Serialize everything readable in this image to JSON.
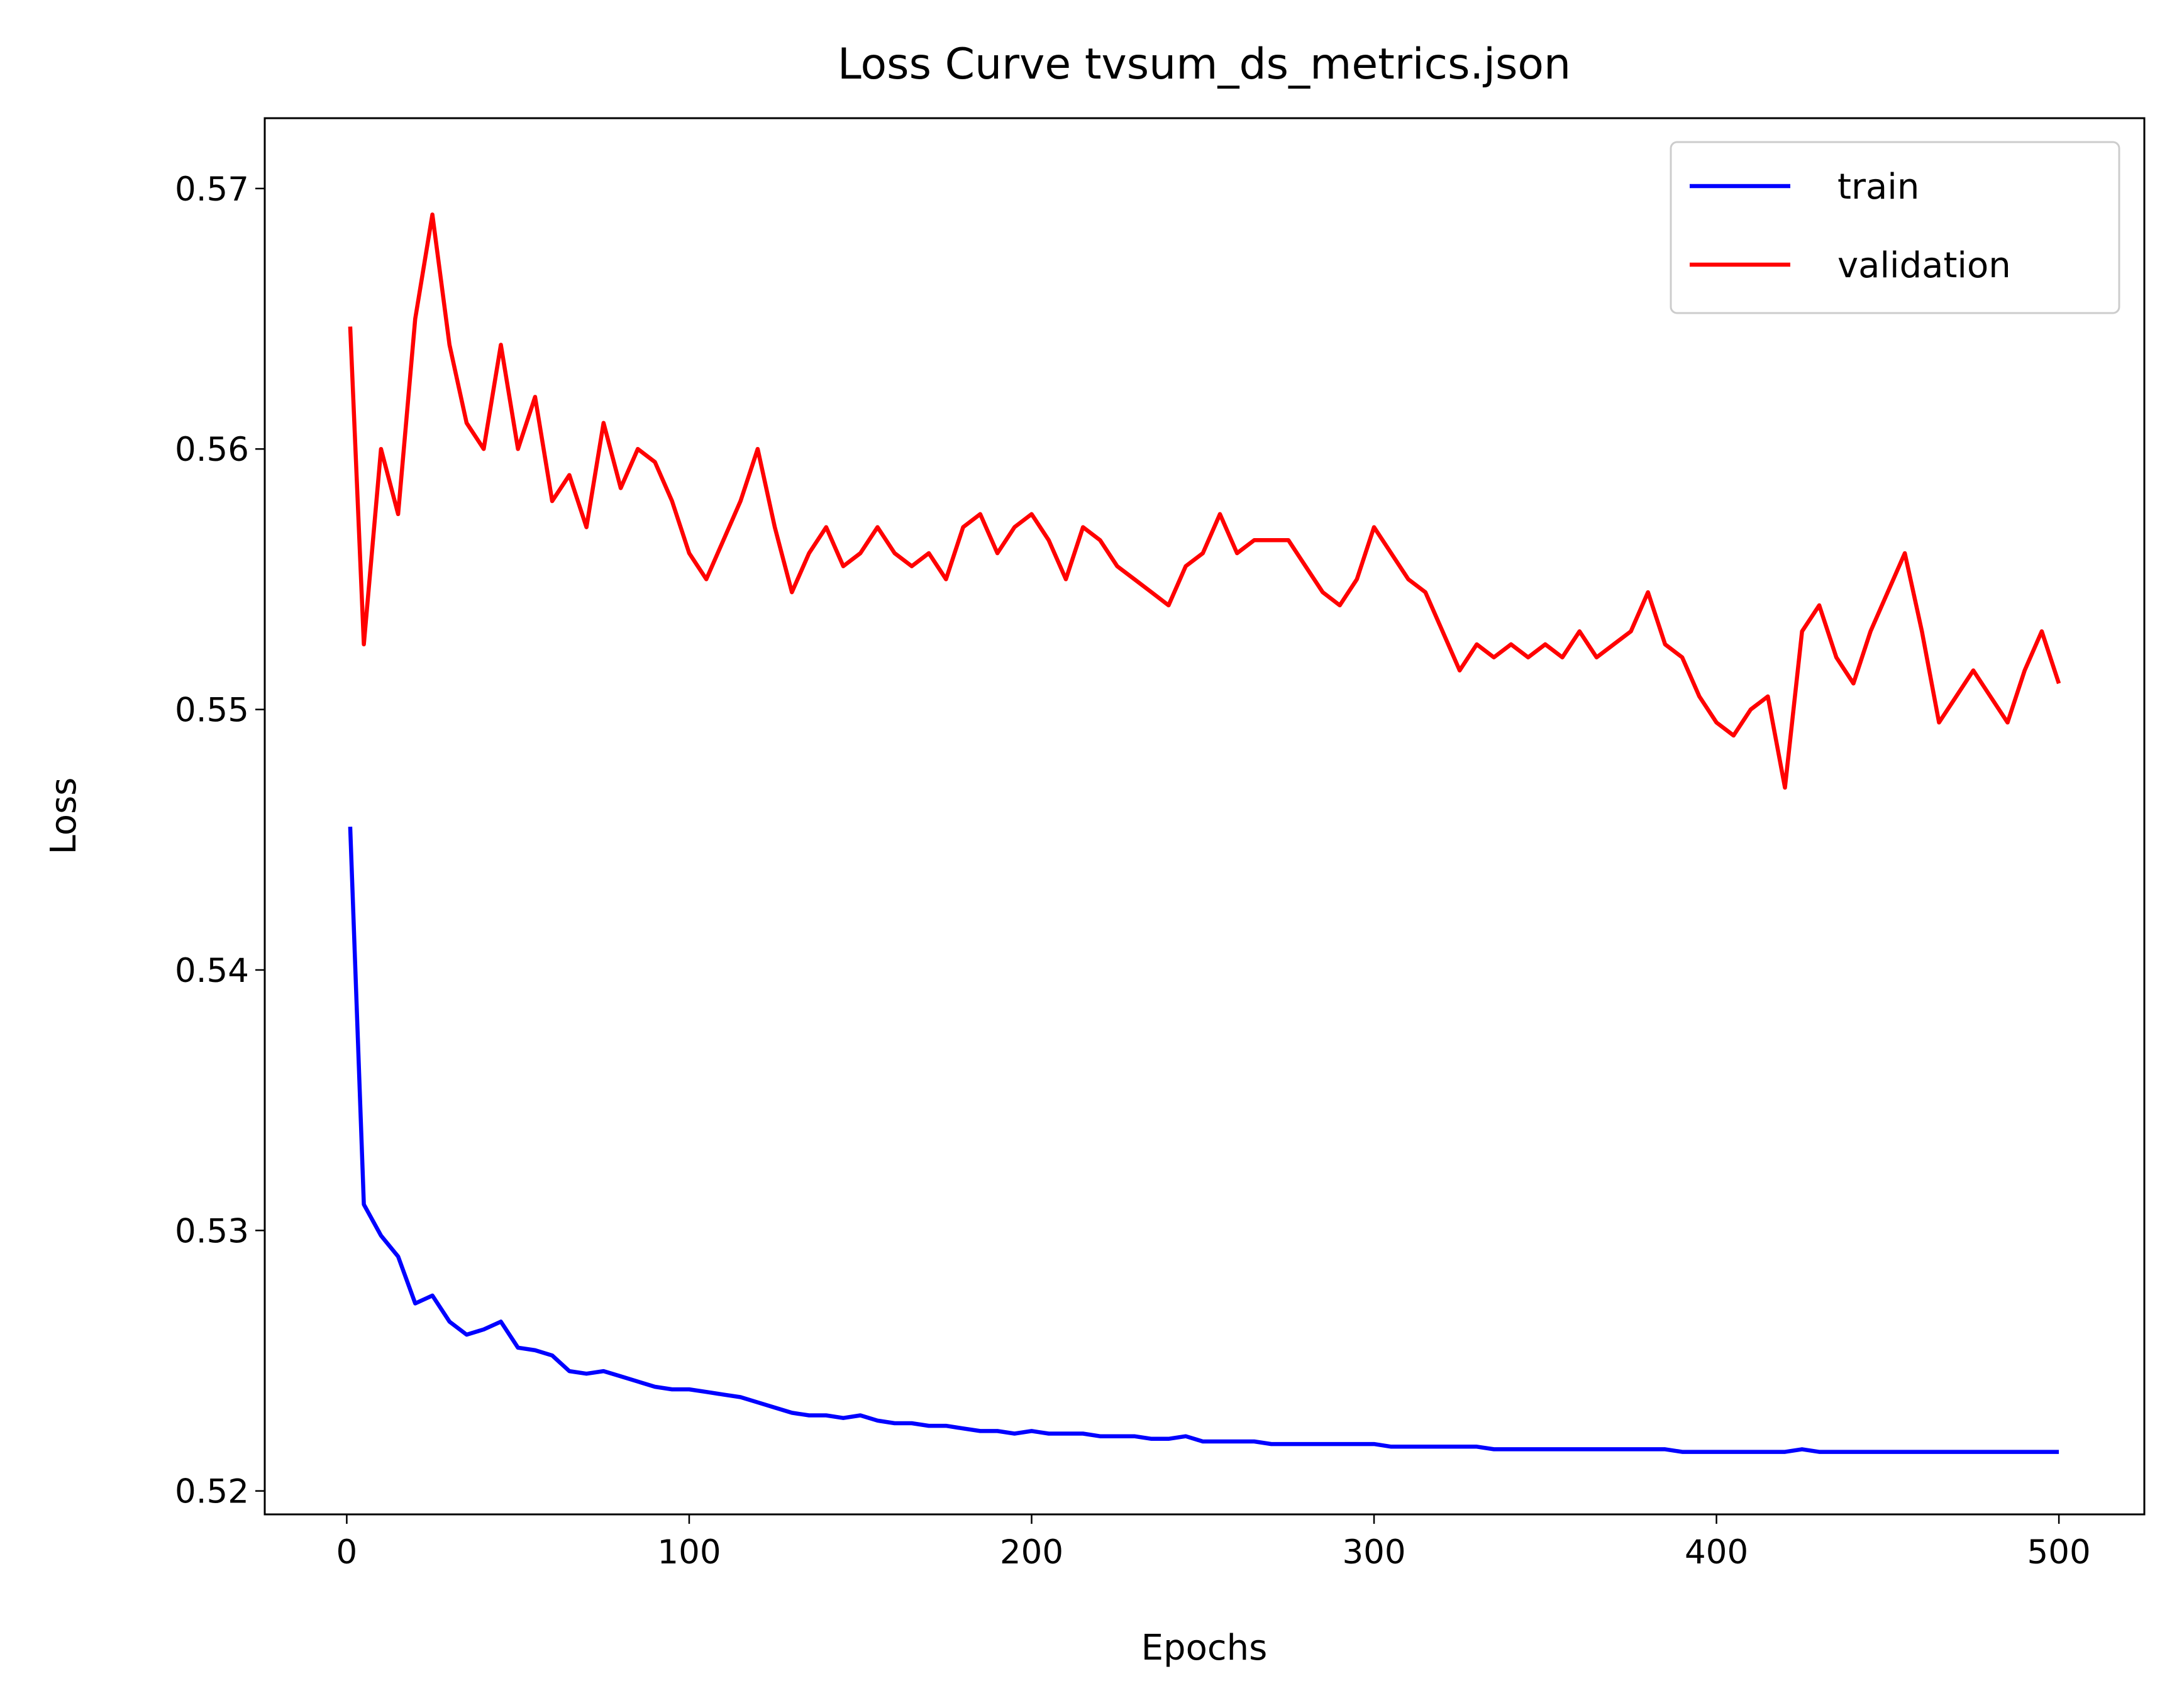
{
  "chart_data": {
    "type": "line",
    "title": "Loss Curve tvsum_ds_metrics.json",
    "x_label": "Epochs",
    "y_label": "Loss",
    "x": [
      1,
      5,
      10,
      15,
      20,
      25,
      30,
      35,
      40,
      45,
      50,
      55,
      60,
      65,
      70,
      75,
      80,
      85,
      90,
      95,
      100,
      105,
      110,
      115,
      120,
      125,
      130,
      135,
      140,
      145,
      150,
      155,
      160,
      165,
      170,
      175,
      180,
      185,
      190,
      195,
      200,
      205,
      210,
      215,
      220,
      225,
      230,
      235,
      240,
      245,
      250,
      255,
      260,
      265,
      270,
      275,
      280,
      285,
      290,
      295,
      300,
      305,
      310,
      315,
      320,
      325,
      330,
      335,
      340,
      345,
      350,
      355,
      360,
      365,
      370,
      375,
      380,
      385,
      390,
      395,
      400,
      405,
      410,
      415,
      420,
      425,
      430,
      435,
      440,
      445,
      450,
      455,
      460,
      465,
      470,
      475,
      480,
      485,
      490,
      495,
      500
    ],
    "series": [
      {
        "name": "train",
        "color": "#0000ff",
        "values": [
          0.5455,
          0.531,
          0.5298,
          0.529,
          0.5272,
          0.5275,
          0.5265,
          0.526,
          0.5262,
          0.5265,
          0.5255,
          0.5254,
          0.5252,
          0.5246,
          0.5245,
          0.5246,
          0.5244,
          0.5242,
          0.524,
          0.5239,
          0.5239,
          0.5238,
          0.5237,
          0.5236,
          0.5234,
          0.5232,
          0.523,
          0.5229,
          0.5229,
          0.5228,
          0.5229,
          0.5227,
          0.5226,
          0.5226,
          0.5225,
          0.5225,
          0.5224,
          0.5223,
          0.5223,
          0.5222,
          0.5223,
          0.5222,
          0.5222,
          0.5222,
          0.5221,
          0.5221,
          0.5221,
          0.522,
          0.522,
          0.5221,
          0.5219,
          0.5219,
          0.5219,
          0.5219,
          0.5218,
          0.5218,
          0.5218,
          0.5218,
          0.5218,
          0.5218,
          0.5218,
          0.5217,
          0.5217,
          0.5217,
          0.5217,
          0.5217,
          0.5217,
          0.5216,
          0.5216,
          0.5216,
          0.5216,
          0.5216,
          0.5216,
          0.5216,
          0.5216,
          0.5216,
          0.5216,
          0.5216,
          0.5215,
          0.5215,
          0.5215,
          0.5215,
          0.5215,
          0.5215,
          0.5215,
          0.5216,
          0.5215,
          0.5215,
          0.5215,
          0.5215,
          0.5215,
          0.5215,
          0.5215,
          0.5215,
          0.5215,
          0.5215,
          0.5215,
          0.5215,
          0.5215,
          0.5215,
          0.5215
        ]
      },
      {
        "name": "validation",
        "color": "#ff0000",
        "values": [
          0.5647,
          0.5525,
          0.56,
          0.5575,
          0.565,
          0.569,
          0.564,
          0.561,
          0.56,
          0.564,
          0.56,
          0.562,
          0.558,
          0.559,
          0.557,
          0.561,
          0.5585,
          0.56,
          0.5595,
          0.558,
          0.556,
          0.555,
          0.5565,
          0.558,
          0.56,
          0.557,
          0.5545,
          0.556,
          0.557,
          0.5555,
          0.556,
          0.557,
          0.556,
          0.5555,
          0.556,
          0.555,
          0.557,
          0.5575,
          0.556,
          0.557,
          0.5575,
          0.5565,
          0.555,
          0.557,
          0.5565,
          0.5555,
          0.555,
          0.5545,
          0.554,
          0.5555,
          0.556,
          0.5575,
          0.556,
          0.5565,
          0.5565,
          0.5565,
          0.5555,
          0.5545,
          0.554,
          0.555,
          0.557,
          0.556,
          0.555,
          0.5545,
          0.553,
          0.5515,
          0.5525,
          0.552,
          0.5525,
          0.552,
          0.5525,
          0.552,
          0.553,
          0.552,
          0.5525,
          0.553,
          0.5545,
          0.5525,
          0.552,
          0.5505,
          0.5495,
          0.549,
          0.55,
          0.5505,
          0.547,
          0.553,
          0.554,
          0.552,
          0.551,
          0.553,
          0.5545,
          0.556,
          0.553,
          0.5495,
          0.5505,
          0.5515,
          0.5505,
          0.5495,
          0.5515,
          0.553,
          0.551
        ]
      }
    ],
    "xlim": [
      -23.95,
      524.95
    ],
    "ylim": [
      0.5191,
      0.5727
    ],
    "xticks": [
      0,
      100,
      200,
      300,
      400,
      500
    ],
    "yticks": [
      0.52,
      0.53,
      0.54,
      0.55,
      0.56,
      0.57
    ],
    "legend": "upper right"
  }
}
